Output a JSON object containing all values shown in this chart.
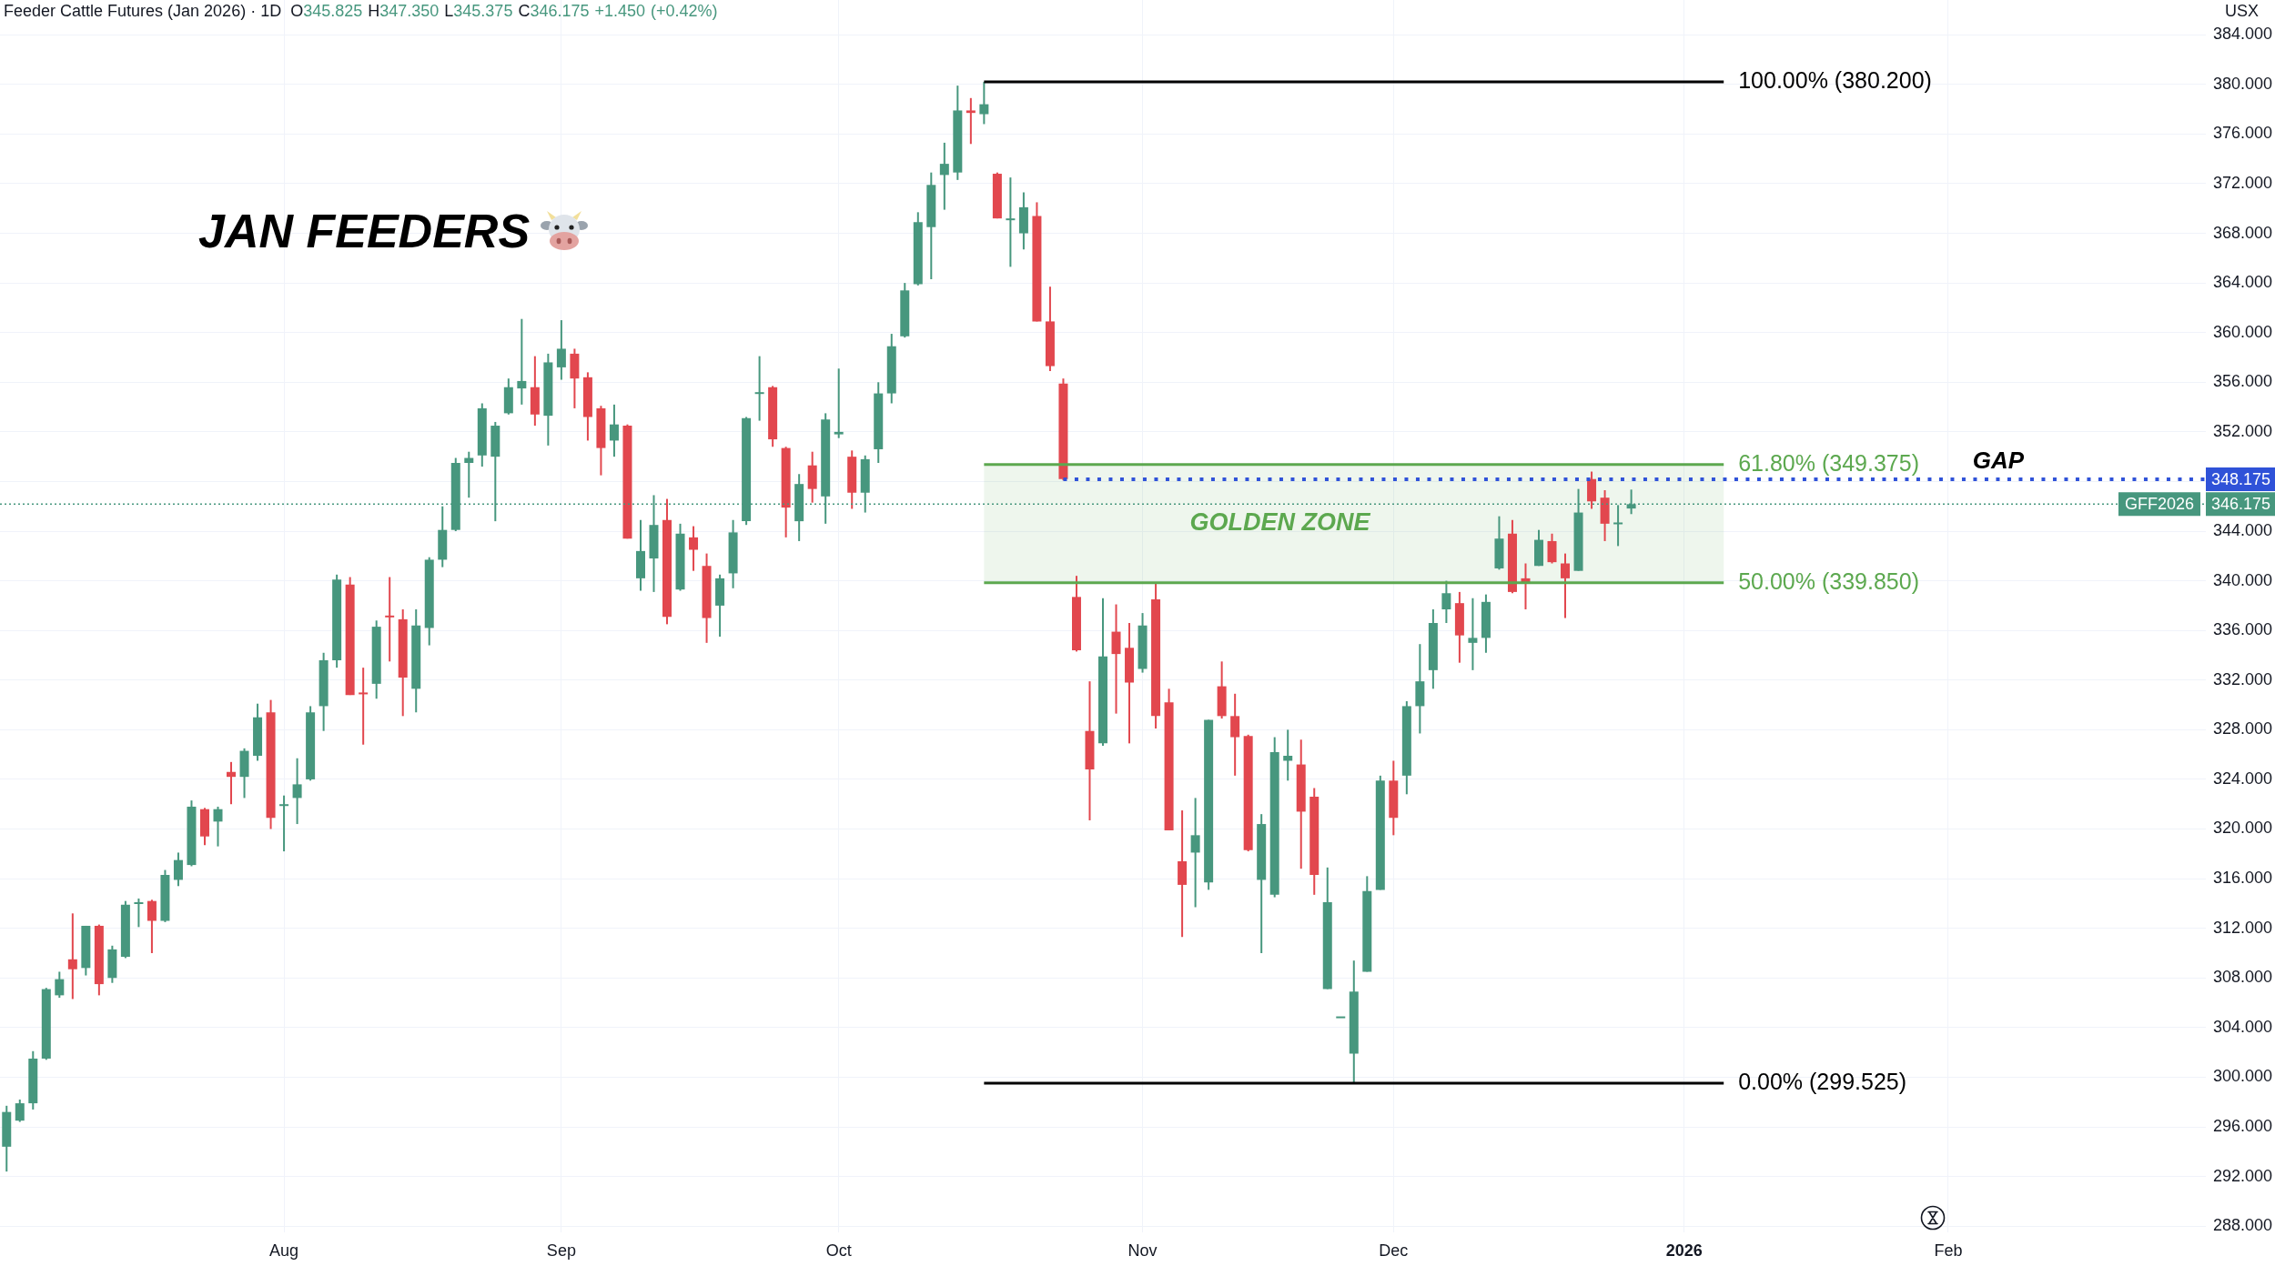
{
  "chart_data": {
    "type": "candlestick",
    "title": "Feeder Cattle Futures (Jan 2026) · 1D",
    "subtitle": "O345.825 H347.350 L345.375 C346.175 +1.450 (+0.42%)",
    "ylabel": "USX",
    "annotations": [
      "JAN FEEDERS",
      {
        "text": "GAP",
        "y": 348.175
      },
      {
        "text": "GFF2026",
        "y": 346.175
      }
    ],
    "categories": [
      null,
      null,
      null,
      null,
      null,
      null,
      null,
      null,
      null,
      null,
      null,
      null,
      null,
      null,
      null,
      null,
      null,
      null,
      null,
      null,
      null,
      "Aug",
      null,
      null,
      null,
      null,
      null,
      null,
      null,
      null,
      null,
      null,
      null,
      null,
      null,
      null,
      null,
      null,
      null,
      null,
      null,
      null,
      "Sep",
      null,
      null,
      null,
      null,
      null,
      null,
      null,
      null,
      null,
      null,
      null,
      null,
      null,
      null,
      null,
      null,
      null,
      null,
      null,
      null,
      "Oct",
      null,
      null,
      null,
      null,
      null,
      null,
      null,
      null,
      null,
      null,
      null,
      null,
      null,
      null,
      null,
      null,
      null,
      null,
      null,
      null,
      null,
      null,
      "Nov",
      null,
      null,
      null,
      null,
      null,
      null,
      null,
      null,
      null,
      null,
      null,
      null,
      null,
      null,
      null,
      null,
      null,
      null,
      "Dec",
      null,
      null,
      null,
      null,
      null,
      null,
      null,
      null,
      null,
      null,
      null,
      null,
      null,
      null,
      null,
      null,
      null,
      null,
      null,
      null,
      null,
      "2026",
      null,
      null,
      null,
      null,
      null,
      null,
      null,
      null,
      null,
      null,
      null,
      null,
      null,
      null,
      null,
      null,
      null,
      null,
      null,
      "Feb",
      null,
      null,
      null,
      null,
      null,
      null,
      null,
      null,
      null,
      null,
      null,
      null,
      null,
      null,
      null,
      null,
      null,
      null,
      null
    ],
    "ohlc": [
      [
        294.4,
        297.7,
        292.4,
        297.2
      ],
      [
        296.5,
        298.2,
        296.4,
        297.9
      ],
      [
        297.9,
        302.1,
        297.4,
        301.5
      ],
      [
        301.5,
        307.2,
        301.4,
        307.1
      ],
      [
        306.6,
        308.5,
        306.4,
        307.9
      ],
      [
        309.5,
        313.2,
        306.3,
        308.7
      ],
      [
        308.8,
        312.2,
        308.2,
        312.2
      ],
      [
        312.2,
        312.3,
        306.6,
        307.5
      ],
      [
        308.0,
        310.6,
        307.6,
        310.3
      ],
      [
        309.7,
        314.2,
        309.6,
        313.9
      ],
      [
        314.0,
        314.4,
        312.1,
        314.1
      ],
      [
        314.2,
        314.3,
        310.0,
        312.6
      ],
      [
        312.6,
        316.7,
        312.5,
        316.3
      ],
      [
        315.9,
        318.1,
        315.4,
        317.5
      ],
      [
        317.1,
        322.3,
        317.0,
        321.8
      ],
      [
        321.6,
        321.7,
        318.7,
        319.4
      ],
      [
        320.6,
        321.8,
        318.6,
        321.6
      ],
      [
        324.6,
        325.4,
        322.0,
        324.2
      ],
      [
        324.2,
        326.5,
        322.5,
        326.3
      ],
      [
        325.9,
        330.1,
        325.5,
        329.0
      ],
      [
        329.4,
        330.4,
        320.0,
        320.9
      ],
      [
        321.9,
        322.7,
        318.2,
        322.0
      ],
      [
        322.5,
        325.7,
        320.4,
        323.6
      ],
      [
        324.0,
        329.9,
        323.9,
        329.4
      ],
      [
        329.9,
        334.2,
        327.9,
        333.6
      ],
      [
        333.6,
        340.5,
        333.0,
        340.1
      ],
      [
        339.7,
        340.3,
        330.8,
        330.8
      ],
      [
        331.0,
        333.0,
        326.8,
        330.9
      ],
      [
        331.7,
        336.8,
        330.5,
        336.3
      ],
      [
        337.2,
        340.3,
        333.5,
        337.1
      ],
      [
        336.9,
        337.7,
        329.1,
        332.2
      ],
      [
        331.3,
        337.7,
        329.4,
        336.4
      ],
      [
        336.2,
        341.9,
        334.8,
        341.7
      ],
      [
        341.7,
        346.0,
        341.1,
        344.1
      ],
      [
        344.1,
        349.9,
        344.0,
        349.5
      ],
      [
        349.5,
        350.4,
        346.7,
        349.9
      ],
      [
        350.1,
        354.3,
        349.2,
        353.9
      ],
      [
        350.0,
        352.8,
        344.8,
        352.5
      ],
      [
        353.5,
        356.3,
        353.4,
        355.6
      ],
      [
        355.5,
        361.1,
        354.2,
        356.1
      ],
      [
        355.6,
        358.1,
        352.5,
        353.4
      ],
      [
        353.3,
        358.3,
        350.9,
        357.6
      ],
      [
        357.2,
        361.0,
        356.2,
        358.7
      ],
      [
        358.3,
        358.7,
        353.9,
        356.3
      ],
      [
        356.4,
        356.8,
        351.3,
        353.2
      ],
      [
        353.9,
        354.1,
        348.5,
        350.7
      ],
      [
        351.3,
        354.2,
        350.0,
        352.6
      ],
      [
        352.5,
        352.6,
        343.4,
        343.4
      ],
      [
        340.2,
        344.9,
        339.2,
        342.4
      ],
      [
        341.8,
        346.9,
        339.1,
        344.5
      ],
      [
        344.9,
        346.6,
        336.5,
        337.1
      ],
      [
        339.3,
        344.6,
        339.2,
        343.8
      ],
      [
        343.5,
        344.4,
        340.8,
        342.5
      ],
      [
        341.2,
        342.2,
        335.0,
        337.0
      ],
      [
        338.0,
        340.5,
        335.5,
        340.2
      ],
      [
        340.6,
        344.9,
        339.4,
        343.9
      ],
      [
        344.8,
        353.2,
        344.5,
        353.1
      ],
      [
        355.1,
        358.1,
        352.9,
        355.2
      ],
      [
        355.6,
        355.7,
        350.8,
        351.4
      ],
      [
        350.7,
        350.8,
        343.5,
        345.9
      ],
      [
        344.8,
        348.6,
        343.2,
        347.8
      ],
      [
        349.3,
        350.4,
        346.3,
        347.4
      ],
      [
        346.8,
        353.5,
        344.6,
        353.0
      ],
      [
        351.8,
        357.1,
        351.5,
        352.0
      ],
      [
        350.0,
        350.5,
        345.8,
        347.1
      ],
      [
        347.1,
        350.1,
        345.5,
        349.8
      ],
      [
        350.6,
        356.0,
        349.5,
        355.1
      ],
      [
        355.1,
        359.9,
        354.3,
        358.9
      ],
      [
        359.7,
        364.0,
        359.6,
        363.4
      ],
      [
        363.9,
        369.7,
        363.8,
        368.9
      ],
      [
        368.5,
        372.9,
        364.3,
        371.9
      ],
      [
        372.7,
        375.3,
        369.9,
        373.6
      ],
      [
        372.9,
        379.9,
        372.3,
        377.9
      ],
      [
        377.9,
        378.9,
        375.2,
        377.7
      ],
      [
        377.6,
        380.2,
        376.8,
        378.4
      ],
      [
        372.8,
        372.9,
        369.2,
        369.2
      ],
      [
        369.1,
        372.5,
        365.3,
        369.2
      ],
      [
        368.0,
        371.3,
        366.7,
        370.1
      ],
      [
        369.4,
        370.5,
        360.9,
        360.9
      ],
      [
        360.9,
        363.7,
        356.9,
        357.3
      ],
      [
        355.9,
        356.3,
        348.1,
        348.2
      ],
      [
        338.7,
        340.4,
        334.3,
        334.4
      ],
      [
        327.9,
        331.9,
        320.7,
        324.8
      ],
      [
        326.9,
        338.6,
        326.7,
        333.9
      ],
      [
        335.9,
        338.1,
        329.3,
        334.1
      ],
      [
        334.6,
        336.6,
        326.9,
        331.8
      ],
      [
        332.9,
        337.4,
        332.6,
        336.4
      ],
      [
        338.5,
        339.9,
        328.1,
        329.1
      ],
      [
        330.2,
        331.3,
        319.9,
        319.9
      ],
      [
        317.4,
        321.5,
        311.3,
        315.5
      ],
      [
        318.1,
        322.5,
        313.7,
        319.5
      ],
      [
        315.7,
        328.8,
        315.1,
        328.8
      ],
      [
        331.5,
        333.5,
        328.9,
        329.1
      ],
      [
        329.1,
        330.9,
        324.3,
        327.4
      ],
      [
        327.5,
        327.6,
        318.2,
        318.3
      ],
      [
        315.9,
        321.2,
        310.0,
        320.4
      ],
      [
        314.7,
        327.4,
        314.5,
        326.2
      ],
      [
        325.5,
        328.0,
        323.9,
        325.9
      ],
      [
        325.2,
        327.2,
        316.8,
        321.4
      ],
      [
        322.6,
        323.3,
        314.7,
        316.3
      ],
      [
        307.1,
        316.9,
        307.1,
        314.1
      ],
      [
        304.8,
        304.9,
        304.8,
        304.9
      ],
      [
        301.9,
        309.4,
        299.525,
        306.9
      ],
      [
        308.5,
        316.2,
        308.5,
        315.0
      ],
      [
        315.1,
        324.3,
        315.1,
        323.9
      ],
      [
        323.9,
        325.5,
        319.5,
        320.9
      ],
      [
        324.3,
        330.3,
        322.8,
        329.9
      ],
      [
        329.9,
        334.9,
        327.7,
        331.9
      ],
      [
        332.8,
        337.7,
        331.3,
        336.6
      ],
      [
        337.7,
        340.0,
        336.6,
        339.0
      ],
      [
        338.2,
        339.1,
        333.4,
        335.6
      ],
      [
        335.0,
        338.6,
        332.8,
        335.4
      ],
      [
        335.4,
        338.9,
        334.2,
        338.3
      ],
      [
        341.0,
        345.2,
        340.9,
        343.4
      ],
      [
        343.8,
        344.9,
        339.0,
        339.1
      ],
      [
        340.2,
        341.4,
        337.7,
        339.9
      ],
      [
        341.2,
        344.1,
        341.2,
        343.3
      ],
      [
        343.2,
        343.8,
        341.4,
        341.5
      ],
      [
        341.4,
        342.2,
        337.0,
        340.2
      ],
      [
        340.8,
        347.4,
        340.8,
        345.5
      ],
      [
        348.2,
        348.8,
        345.8,
        346.4
      ],
      [
        346.7,
        347.3,
        343.2,
        344.6
      ],
      [
        344.6,
        346.1,
        342.8,
        344.7
      ],
      [
        345.825,
        347.35,
        345.375,
        346.175
      ],
      null,
      null,
      null,
      null,
      null,
      null,
      null,
      null,
      null,
      null,
      null,
      null,
      null,
      null,
      null,
      null,
      null,
      null,
      null,
      null,
      null,
      null,
      null,
      null,
      null,
      null,
      null,
      null,
      null,
      null,
      null,
      null,
      null,
      null,
      null,
      null,
      null,
      null,
      null,
      null,
      null,
      null,
      null
    ],
    "colors": [
      "#47977e",
      "#47977e",
      "#47977e",
      "#47977e",
      "#47977e",
      "#e2474e",
      "#47977e",
      "#e2474e",
      "#47977e",
      "#47977e",
      "#47977e",
      "#e2474e",
      "#47977e",
      "#47977e",
      "#47977e",
      "#e2474e",
      "#47977e",
      "#e2474e",
      "#47977e",
      "#47977e",
      "#e2474e",
      "#47977e",
      "#47977e",
      "#47977e",
      "#47977e",
      "#47977e",
      "#e2474e",
      "#e2474e",
      "#47977e",
      "#e2474e",
      "#e2474e",
      "#47977e",
      "#47977e",
      "#47977e",
      "#47977e",
      "#47977e",
      "#47977e",
      "#47977e",
      "#47977e",
      "#47977e",
      "#e2474e",
      "#47977e",
      "#47977e",
      "#e2474e",
      "#e2474e",
      "#e2474e",
      "#47977e",
      "#e2474e",
      "#47977e",
      "#47977e",
      "#e2474e",
      "#47977e",
      "#e2474e",
      "#e2474e",
      "#47977e",
      "#47977e",
      "#47977e",
      "#47977e",
      "#e2474e",
      "#e2474e",
      "#47977e",
      "#e2474e",
      "#47977e",
      "#47977e",
      "#e2474e",
      "#47977e",
      "#47977e",
      "#47977e",
      "#47977e",
      "#47977e",
      "#47977e",
      "#47977e",
      "#47977e",
      "#e2474e",
      "#47977e",
      "#e2474e",
      "#47977e",
      "#47977e",
      "#e2474e",
      "#e2474e",
      "#e2474e",
      "#e2474e",
      "#e2474e",
      "#47977e",
      "#e2474e",
      "#e2474e",
      "#47977e",
      "#e2474e",
      "#e2474e",
      "#e2474e",
      "#47977e",
      "#47977e",
      "#e2474e",
      "#e2474e",
      "#e2474e",
      "#47977e",
      "#47977e",
      "#47977e",
      "#e2474e",
      "#e2474e",
      "#47977e",
      "#47977e",
      "#47977e",
      "#47977e",
      "#47977e",
      "#e2474e",
      "#47977e",
      "#47977e",
      "#47977e",
      "#47977e",
      "#e2474e",
      "#47977e",
      "#47977e",
      "#47977e",
      "#e2474e",
      "#e2474e",
      "#47977e",
      "#e2474e",
      "#e2474e",
      "#47977e",
      "#e2474e",
      "#e2474e",
      "#47977e",
      "#47977e",
      null,
      null,
      null,
      null,
      null,
      null,
      null,
      null,
      null,
      null,
      null,
      null,
      null,
      null,
      null,
      null,
      null,
      null,
      null,
      null,
      null,
      null,
      null,
      null,
      null,
      null,
      null,
      null,
      null,
      null,
      null,
      null,
      null,
      null,
      null,
      null,
      null,
      null,
      null,
      null,
      null,
      null,
      null
    ],
    "ylim": [
      287.5,
      386.8
    ],
    "yticks": [
      {
        "value": 288,
        "label": "288.000"
      },
      {
        "value": 292,
        "label": "292.000"
      },
      {
        "value": 296,
        "label": "296.000"
      },
      {
        "value": 300,
        "label": "300.000"
      },
      {
        "value": 304,
        "label": "304.000"
      },
      {
        "value": 308,
        "label": "308.000"
      },
      {
        "value": 312,
        "label": "312.000"
      },
      {
        "value": 316,
        "label": "316.000"
      },
      {
        "value": 320,
        "label": "320.000"
      },
      {
        "value": 324,
        "label": "324.000"
      },
      {
        "value": 328,
        "label": "328.000"
      },
      {
        "value": 332,
        "label": "332.000"
      },
      {
        "value": 336,
        "label": "336.000"
      },
      {
        "value": 340,
        "label": "340.000"
      },
      {
        "value": 344,
        "label": "344.000"
      },
      {
        "value": 348,
        "label": null
      },
      {
        "value": 352,
        "label": "352.000"
      },
      {
        "value": 356,
        "label": "356.000"
      },
      {
        "value": 360,
        "label": "360.000"
      },
      {
        "value": 364,
        "label": "364.000"
      },
      {
        "value": 368,
        "label": "368.000"
      },
      {
        "value": 372,
        "label": "372.000"
      },
      {
        "value": 376,
        "label": "376.000"
      },
      {
        "value": 380,
        "label": "380.000"
      },
      {
        "value": 384,
        "label": "384.000"
      }
    ],
    "ref_lines": [
      {
        "axis": "y",
        "value": 380.2,
        "label": "100.00% (380.200)",
        "color": "#000000"
      },
      {
        "axis": "y",
        "value": 349.375,
        "label": "61.80% (349.375)",
        "color": "#5ca84f"
      },
      {
        "axis": "y",
        "value": 339.85,
        "label": "50.00% (339.850)",
        "color": "#5ca84f"
      },
      {
        "axis": "y",
        "value": 299.525,
        "label": "0.00% (299.525)",
        "color": "#000000"
      },
      {
        "axis": "y",
        "value": 348.175,
        "label": "348.175",
        "color": "#2f52d8",
        "line_style": "dotted"
      },
      {
        "axis": "y",
        "value": 346.175,
        "label": "346.175",
        "color": "#47977e",
        "line_style": "dotted"
      }
    ],
    "bands": [
      {
        "axis": "y",
        "from": 339.85,
        "to": 349.375,
        "label": "GOLDEN ZONE",
        "color": "#5ca84f"
      }
    ],
    "grid": true
  }
}
